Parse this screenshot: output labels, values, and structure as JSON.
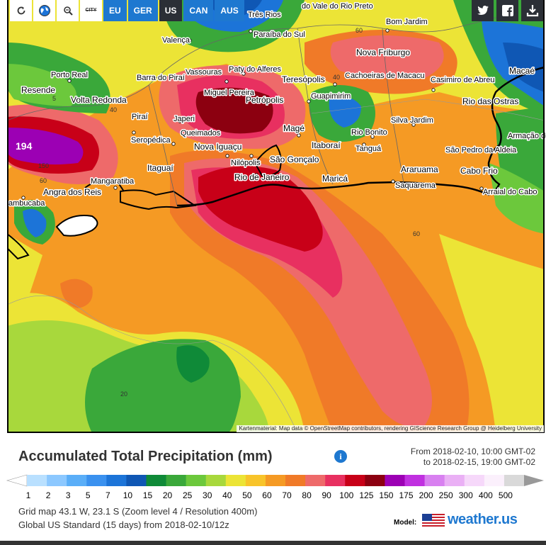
{
  "toolbar": {
    "buttons": [
      "EU",
      "GER",
      "US",
      "CAN",
      "AUS"
    ],
    "city_toggle": "CITY",
    "icons": [
      "refresh-icon",
      "globe-icon",
      "zoom-icon"
    ]
  },
  "share": {
    "icons": [
      "twitter-icon",
      "facebook-icon",
      "download-icon"
    ]
  },
  "map": {
    "max_value": "194",
    "attribution": "Kartenmaterial: Map data © OpenStreetMap contributors, rendering GIScience Research Group @ Heidelberg University",
    "contour_labels": [
      "60",
      "40",
      "60",
      "40",
      "5",
      "150",
      "60",
      "60",
      "20"
    ],
    "cities": [
      "Três Rios",
      "do Vale do Rio Preto",
      "Bom Jardim",
      "Valença",
      "Paraíba do Sul",
      "Nova Friburgo",
      "Porto Real",
      "Vassouras",
      "Paty do Alferes",
      "Barra do Piraí",
      "Teresópolis",
      "Cachoeiras de Macacu",
      "Casimiro de Abreu",
      "Macaé",
      "Resende",
      "Volta Redonda",
      "Miguel Pereira",
      "Petrópolis",
      "Guapimirim",
      "Rio das Ostras",
      "Piraí",
      "Japeri",
      "Silva Jardim",
      "Queimados",
      "Magé",
      "Rio Bonito",
      "Armação dos Búzios",
      "Seropédica",
      "Nova Iguaçu",
      "Itaboraí",
      "Tanguá",
      "São Pedro da Aldeia",
      "Nilópolis",
      "São Gonçalo",
      "Itaguaí",
      "Rio de Janeiro",
      "Maricá",
      "Araruama",
      "Cabo Frio",
      "Mangaratiba",
      "Saquarema",
      "Angra dos Reis",
      "Arraial do Cabo",
      "ambucaba"
    ]
  },
  "legend": {
    "title": "Accumulated Total Precipitation (mm)",
    "from": "From 2018-02-10, 10:00 GMT-02",
    "to": "to 2018-02-15, 19:00 GMT-02",
    "ticks": [
      "1",
      "2",
      "3",
      "5",
      "7",
      "10",
      "15",
      "20",
      "25",
      "30",
      "40",
      "50",
      "60",
      "70",
      "80",
      "90",
      "100",
      "125",
      "150",
      "175",
      "200",
      "250",
      "300",
      "400",
      "500"
    ],
    "colors": [
      "#b9e0ff",
      "#8cc8ff",
      "#5aaef8",
      "#3a91ef",
      "#1c74d8",
      "#0f57b4",
      "#0f8a38",
      "#3aa83a",
      "#6cc83c",
      "#a8d83c",
      "#ece436",
      "#f8c42a",
      "#f59a24",
      "#f07a28",
      "#ee6a6a",
      "#e83060",
      "#c80018",
      "#8c0010",
      "#9c00b4",
      "#c030e0",
      "#d880f0",
      "#eab0f5",
      "#f6d8fa",
      "#fbf0fc",
      "#d9d9d9"
    ]
  },
  "footer": {
    "line1": "Grid map 43.1 W, 23.1 S (Zoom level 4 / Resolution 400m)",
    "line2": "Global US Standard (15 days) from 2018-02-10/12z",
    "model_label": "Model:",
    "logo_text": "weather.us"
  }
}
